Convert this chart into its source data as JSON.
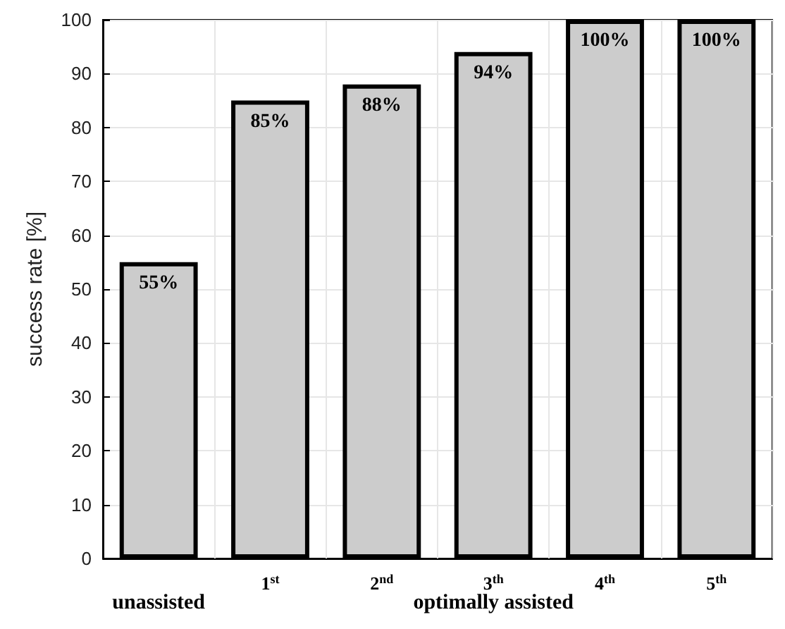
{
  "chart_data": {
    "type": "bar",
    "ylabel": "success rate [%]",
    "categories": [
      null,
      "1$^{st}$",
      "2$^{nd}$",
      "3$^{th}$",
      "4$^{th}$",
      "5$^{th}$"
    ],
    "values": [
      55,
      85,
      88,
      94,
      100,
      100
    ],
    "value_labels": [
      "55%",
      "85%",
      "88%",
      "94%",
      "100%",
      "100%"
    ],
    "color": "#cccccc",
    "ylim": [
      0,
      100
    ],
    "yticks": [
      0,
      10,
      20,
      30,
      40,
      50,
      60,
      70,
      80,
      90,
      100
    ],
    "grid": true,
    "annotations": [
      "unassisted",
      "optimally assisted"
    ]
  }
}
